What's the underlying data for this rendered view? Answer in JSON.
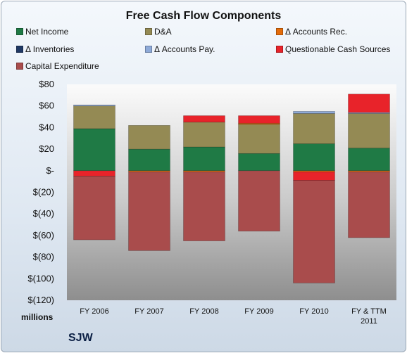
{
  "chart_data": {
    "type": "bar",
    "stacked": true,
    "title": "Free Cash Flow Components",
    "unit_label": "millions",
    "brand": "SJW",
    "categories": [
      [
        "FY 2006"
      ],
      [
        "FY 2007"
      ],
      [
        "FY 2008"
      ],
      [
        "FY 2009"
      ],
      [
        "FY 2010"
      ],
      [
        "FY & TTM",
        "2011"
      ]
    ],
    "ylim": [
      -120,
      80
    ],
    "yticks": [
      80,
      60,
      40,
      20,
      0,
      -20,
      -40,
      -60,
      -80,
      -100,
      -120
    ],
    "ytick_labels": [
      "$80",
      "$60",
      "$40",
      "$20",
      "$-",
      "$(20)",
      "$(40)",
      "$(60)",
      "$(80)",
      "$(100)",
      "$(120)"
    ],
    "grid": false,
    "legend_position": "top",
    "series": [
      {
        "name": "Net Income",
        "color": "#1f7a45",
        "values": [
          39,
          20,
          22,
          16,
          25,
          21
        ]
      },
      {
        "name": "D&A",
        "color": "#948a54",
        "values": [
          21,
          22,
          23,
          27,
          28,
          32
        ]
      },
      {
        "name": "Δ Accounts Rec.",
        "color": "#e46c0a",
        "values": [
          0,
          -1,
          -1,
          1,
          -1,
          -1
        ]
      },
      {
        "name": "Δ Inventories",
        "color": "#1f3864",
        "values": [
          0,
          0,
          0,
          0,
          0,
          0
        ]
      },
      {
        "name": "Δ Accounts Pay.",
        "color": "#8eaad8",
        "values": [
          1,
          0,
          0,
          0,
          2,
          1
        ]
      },
      {
        "name": "Questionable Cash Sources",
        "color": "#e8232a",
        "values": [
          -5,
          0,
          6,
          7,
          -8,
          17
        ]
      },
      {
        "name": "Capital Expenditure",
        "color": "#a94c4c",
        "values": [
          -59,
          -73,
          -64,
          -56,
          -95,
          -61
        ]
      }
    ]
  }
}
